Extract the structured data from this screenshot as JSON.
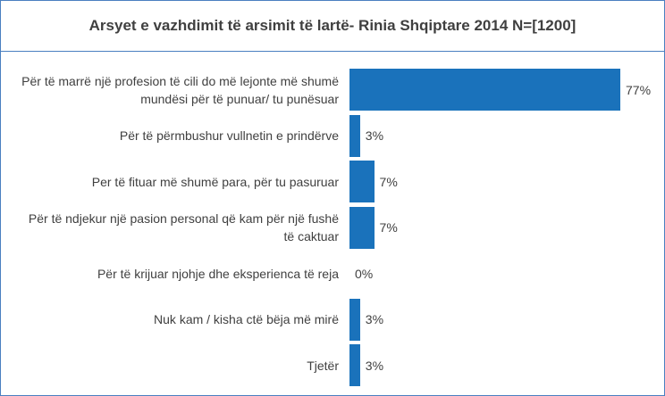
{
  "chart_data": {
    "type": "bar",
    "orientation": "horizontal",
    "title": "Arsyet e vazhdimit të arsimit të lartë- Rinia Shqiptare 2014 N=[1200]",
    "categories": [
      "Për të marrë një profesion të cili do më lejonte më shumë mundësi për të punuar/ tu punësuar",
      "Për të përmbushur vullnetin e prindërve",
      "Per të fituar më shumë para, për tu pasuruar",
      "Për të ndjekur një pasion personal që kam për një fushë të caktuar",
      "Për të krijuar njohje dhe eksperienca të reja",
      "Nuk kam / kisha ctë bëja më mirë",
      "Tjetër"
    ],
    "values": [
      77,
      3,
      7,
      7,
      0,
      3,
      3
    ],
    "value_labels": [
      "77%",
      "3%",
      "7%",
      "7%",
      "0%",
      "3%",
      "3%"
    ],
    "color": "#1a72bb"
  }
}
